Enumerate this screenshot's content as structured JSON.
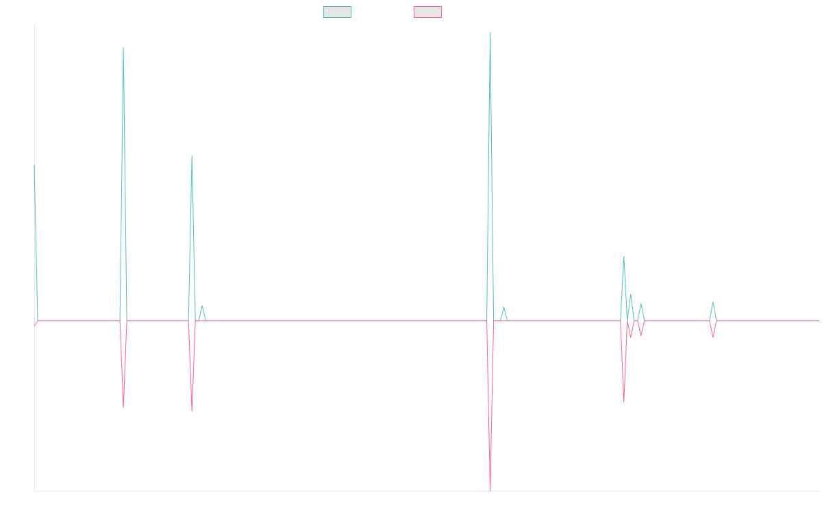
{
  "chart_data": {
    "type": "line",
    "title": "",
    "xlabel": "",
    "ylabel": "",
    "x_count": 230,
    "ylim": [
      -9,
      15.6
    ],
    "grid": false,
    "legend": "top-center",
    "series": [
      {
        "color": "#4bc0c0",
        "fill": "#e6e6e6",
        "spikes": [
          {
            "i": 0,
            "v": 8.2
          },
          {
            "i": 26,
            "v": 14.4
          },
          {
            "i": 46,
            "v": 8.7
          },
          {
            "i": 49,
            "v": 0.8
          },
          {
            "i": 133,
            "v": 15.2
          },
          {
            "i": 137,
            "v": 0.7
          },
          {
            "i": 172,
            "v": 3.4
          },
          {
            "i": 174,
            "v": 1.4
          },
          {
            "i": 177,
            "v": 0.9
          },
          {
            "i": 198,
            "v": 1.0
          }
        ]
      },
      {
        "color": "#ff6384",
        "fill": "#e6e6e6",
        "spikes": [
          {
            "i": 0,
            "v": -0.3
          },
          {
            "i": 26,
            "v": -4.6
          },
          {
            "i": 46,
            "v": -4.8
          },
          {
            "i": 133,
            "v": -9.0
          },
          {
            "i": 172,
            "v": -4.3
          },
          {
            "i": 174,
            "v": -0.9
          },
          {
            "i": 177,
            "v": -0.8
          },
          {
            "i": 198,
            "v": -0.9
          }
        ]
      }
    ]
  }
}
